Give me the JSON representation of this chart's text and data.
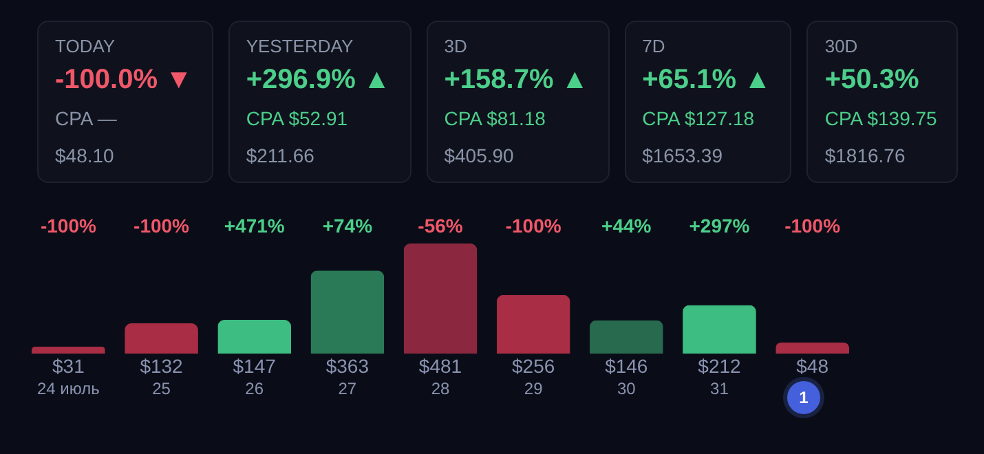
{
  "chart_data": [
    {
      "type": "other",
      "annotations": [
        "TODAY",
        "-100.0% ▼",
        "CPA —",
        "$48.10",
        "YESTERDAY",
        "+296.9% ▲",
        "CPA $52.91",
        "$211.66",
        "3D",
        "+158.7% ▲",
        "CPA $81.18",
        "$405.90",
        "7D",
        "+65.1% ▲",
        "CPA $127.18",
        "$1653.39",
        "30D",
        "+50.3%",
        "CPA $139.75",
        "$1816.76"
      ],
      "colors": [
        "#8a93a8",
        "#f0586a",
        "#8a93a8",
        "#8a93a8",
        "#8a93a8",
        "#4ccf8a",
        "#4ccf8a",
        "#8a93a8",
        "#8a93a8",
        "#4ccf8a",
        "#4ccf8a",
        "#8a93a8",
        "#8a93a8",
        "#4ccf8a",
        "#4ccf8a",
        "#8a93a8",
        "#8a93a8",
        "#4ccf8a",
        "#4ccf8a",
        "#8a93a8"
      ]
    },
    {
      "type": "bar",
      "categories": [
        "24 июль",
        "25",
        "26",
        "27",
        "28",
        "29",
        "30",
        "31",
        null
      ],
      "values": [
        31,
        132,
        147,
        363,
        481,
        256,
        146,
        212,
        48
      ],
      "value_labels": [
        "$31",
        "$132",
        "$147",
        "$363",
        "$481",
        "$256",
        "$146",
        "$212",
        "$48"
      ],
      "colors": [
        "#a82d45",
        "#a82d45",
        "#3dbd82",
        "#2a7a58",
        "#8b2840",
        "#a82d45",
        "#276a4e",
        "#3dbd82",
        "#a82d45"
      ],
      "annotations": [
        "-100%",
        "-100%",
        "+471%",
        "+74%",
        "-56%",
        "-100%",
        "+44%",
        "+297%",
        "-100%",
        "1"
      ]
    }
  ]
}
